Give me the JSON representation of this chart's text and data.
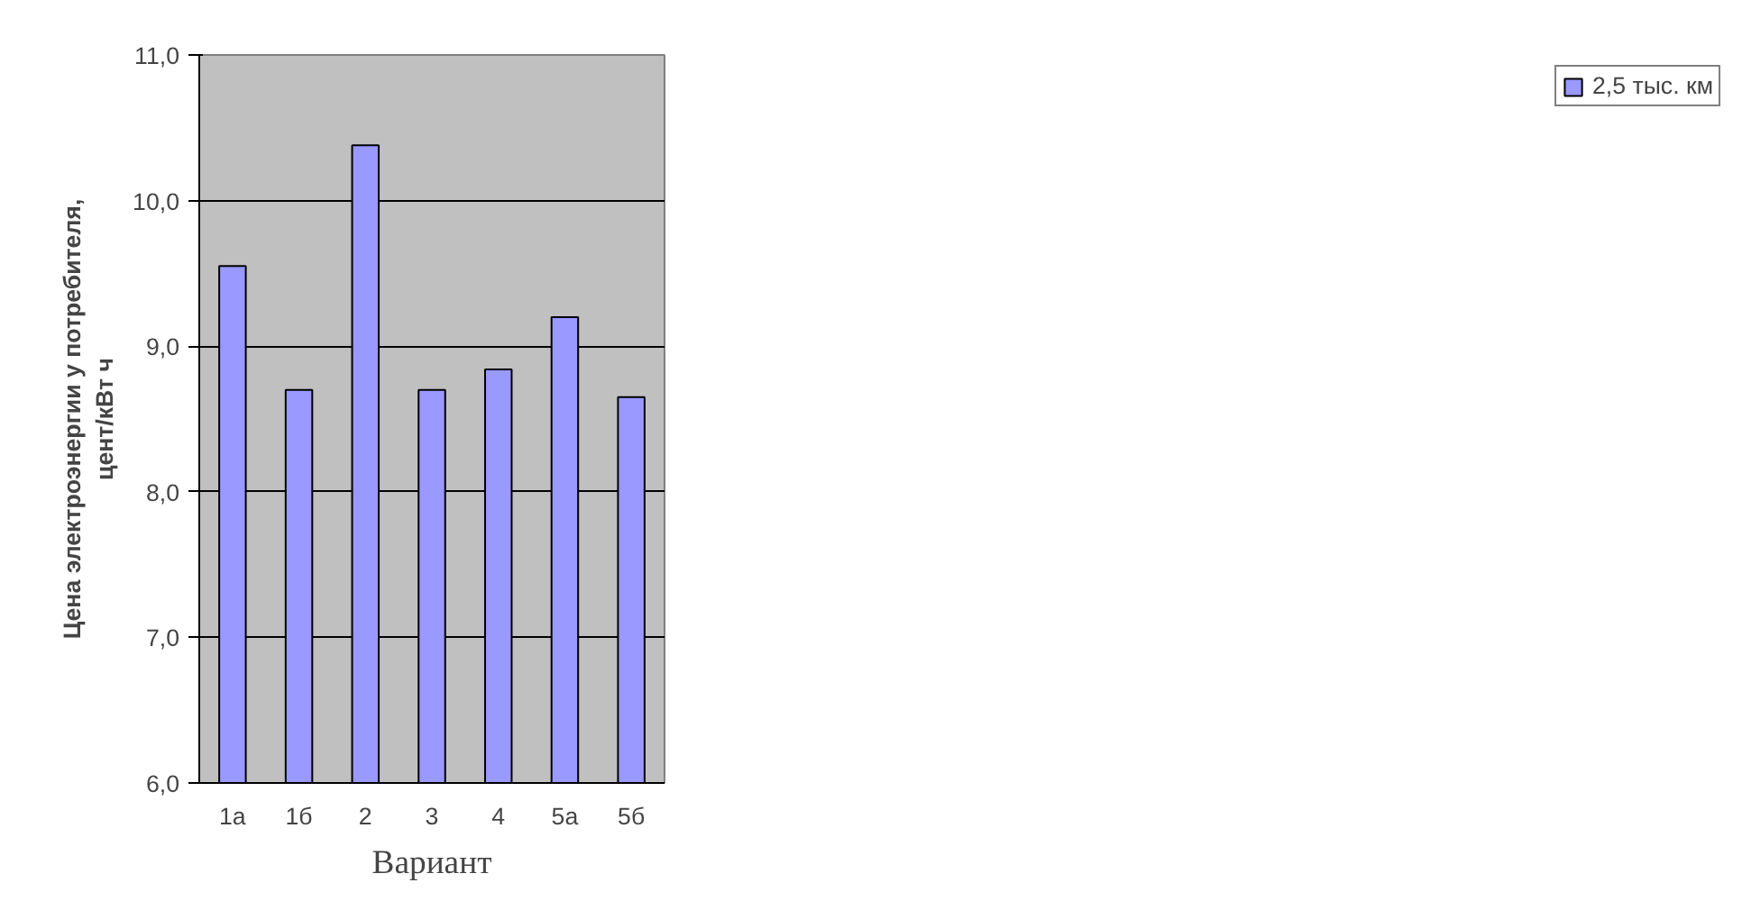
{
  "chart_data": {
    "type": "bar",
    "xlabel": "Вариант",
    "ylabel": "Цена электроэнергии у потребителя,\nцент/кВт ч",
    "categories": [
      "1а",
      "1б",
      "2",
      "3",
      "4",
      "5а",
      "5б"
    ],
    "series": [
      {
        "name": "2,5 тыс. км",
        "color": "#9999ff",
        "values": [
          9.55,
          8.7,
          10.38,
          8.7,
          8.84,
          9.2,
          8.65
        ]
      }
    ],
    "ylim": [
      6,
      11
    ],
    "yticks": [
      {
        "value": 6,
        "label": "6,0"
      },
      {
        "value": 7,
        "label": "7,0"
      },
      {
        "value": 8,
        "label": "8,0"
      },
      {
        "value": 9,
        "label": "9,0"
      },
      {
        "value": 10,
        "label": "10,0"
      },
      {
        "value": 11,
        "label": "11,0"
      }
    ],
    "grid": "y",
    "legend": "right"
  }
}
